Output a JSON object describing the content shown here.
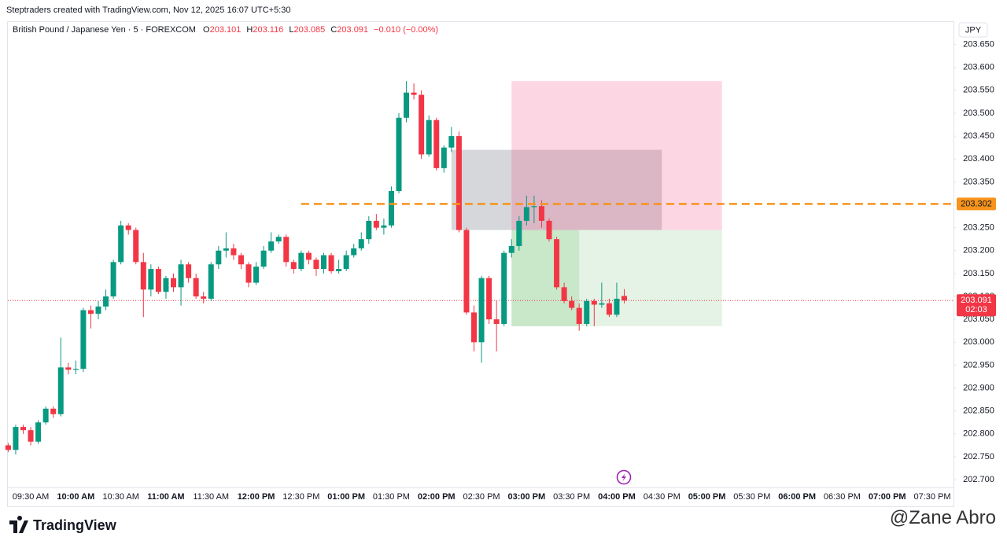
{
  "chart_data": {
    "type": "candlestick",
    "credit": "Steptraders created with TradingView.com, Nov 12, 2025 16:07 UTC+5:30",
    "symbol": "British Pound / Japanese Yen · 5 · FOREXCOM",
    "legend_labels": [
      "O",
      "H",
      "L",
      "C"
    ],
    "change": "−0.010 (−0.00%)",
    "currency": "JPY",
    "countdown": "02:03",
    "brand": "TradingView",
    "watermark": "@Zane Abro",
    "up_color": "#089981",
    "down_color": "#f23645",
    "x": [
      "09:15 AM",
      "09:20 AM",
      "09:25 AM",
      "09:30 AM",
      "09:35 AM",
      "09:40 AM",
      "09:45 AM",
      "09:50 AM",
      "09:55 AM",
      "10:00 AM",
      "10:05 AM",
      "10:10 AM",
      "10:15 AM",
      "10:20 AM",
      "10:25 AM",
      "10:30 AM",
      "10:35 AM",
      "10:40 AM",
      "10:45 AM",
      "10:50 AM",
      "10:55 AM",
      "11:00 AM",
      "11:05 AM",
      "11:10 AM",
      "11:15 AM",
      "11:20 AM",
      "11:25 AM",
      "11:30 AM",
      "11:35 AM",
      "11:40 AM",
      "11:45 AM",
      "11:50 AM",
      "11:55 AM",
      "12:00 PM",
      "12:05 PM",
      "12:10 PM",
      "12:15 PM",
      "12:20 PM",
      "12:25 PM",
      "12:30 PM",
      "12:35 PM",
      "12:40 PM",
      "12:45 PM",
      "12:50 PM",
      "12:55 PM",
      "01:00 PM",
      "01:05 PM",
      "01:10 PM",
      "01:15 PM",
      "01:20 PM",
      "01:25 PM",
      "01:30 PM",
      "01:35 PM",
      "01:40 PM",
      "01:45 PM",
      "01:50 PM",
      "01:55 PM",
      "02:00 PM",
      "02:05 PM",
      "02:10 PM",
      "02:15 PM",
      "02:20 PM",
      "02:25 PM",
      "02:30 PM",
      "02:35 PM",
      "02:40 PM",
      "02:45 PM",
      "02:50 PM",
      "02:55 PM",
      "03:00 PM",
      "03:05 PM",
      "03:10 PM",
      "03:15 PM",
      "03:20 PM",
      "03:25 PM",
      "03:30 PM",
      "03:35 PM",
      "03:40 PM",
      "03:45 PM",
      "03:50 PM",
      "03:55 PM",
      "04:00 PM",
      "04:05 PM"
    ],
    "open": [
      202.775,
      202.765,
      202.815,
      202.808,
      202.783,
      202.825,
      202.855,
      202.843,
      202.945,
      202.94,
      202.942,
      203.07,
      203.062,
      203.078,
      203.1,
      203.175,
      203.255,
      203.245,
      203.175,
      203.115,
      203.16,
      203.11,
      203.14,
      203.12,
      203.17,
      203.14,
      203.1,
      203.095,
      203.17,
      203.2,
      203.205,
      203.19,
      203.17,
      203.13,
      203.165,
      203.2,
      203.22,
      203.23,
      203.175,
      203.16,
      203.195,
      203.18,
      203.16,
      203.19,
      203.155,
      203.16,
      203.19,
      203.205,
      203.225,
      203.265,
      203.25,
      203.255,
      203.33,
      203.49,
      203.545,
      203.54,
      203.41,
      203.485,
      203.38,
      203.425,
      203.45,
      203.245,
      203.065,
      203.0,
      203.14,
      203.05,
      203.04,
      203.195,
      203.21,
      203.265,
      203.295,
      203.297,
      203.265,
      203.225,
      203.12,
      203.09,
      203.075,
      203.04,
      203.09,
      203.082,
      203.085,
      203.06,
      203.101
    ],
    "high": [
      202.78,
      202.82,
      202.82,
      202.815,
      202.83,
      202.86,
      202.86,
      203.01,
      202.955,
      202.96,
      203.075,
      203.08,
      203.09,
      203.115,
      203.18,
      203.265,
      203.26,
      203.25,
      203.195,
      203.17,
      203.165,
      203.145,
      203.15,
      203.18,
      203.175,
      203.15,
      203.11,
      203.175,
      203.21,
      203.24,
      203.215,
      203.195,
      203.175,
      203.175,
      203.21,
      203.24,
      203.235,
      203.235,
      203.18,
      203.2,
      203.2,
      203.185,
      203.195,
      203.195,
      203.18,
      203.2,
      203.215,
      203.24,
      203.275,
      203.28,
      203.27,
      203.34,
      203.5,
      203.57,
      203.565,
      203.55,
      203.495,
      203.49,
      203.43,
      203.47,
      203.46,
      203.25,
      203.08,
      203.145,
      203.145,
      203.09,
      203.2,
      203.225,
      203.275,
      203.32,
      203.32,
      203.31,
      203.27,
      203.23,
      203.13,
      203.1,
      203.085,
      203.095,
      203.095,
      203.13,
      203.095,
      203.13,
      203.116
    ],
    "low": [
      202.76,
      202.755,
      202.8,
      202.775,
      202.778,
      202.82,
      202.835,
      202.838,
      202.93,
      202.93,
      202.935,
      203.03,
      203.05,
      203.07,
      203.095,
      203.17,
      203.235,
      203.17,
      203.055,
      203.1,
      203.105,
      203.095,
      203.11,
      203.08,
      203.13,
      203.095,
      203.085,
      203.09,
      203.16,
      203.185,
      203.18,
      203.16,
      203.12,
      203.125,
      203.16,
      203.195,
      203.215,
      203.165,
      203.15,
      203.155,
      203.17,
      203.145,
      203.15,
      203.15,
      203.15,
      203.155,
      203.185,
      203.2,
      203.215,
      203.245,
      203.235,
      203.25,
      203.325,
      203.48,
      203.53,
      203.4,
      203.405,
      203.375,
      203.37,
      203.415,
      203.24,
      203.06,
      202.98,
      202.955,
      203.04,
      202.98,
      203.035,
      203.185,
      203.2,
      203.255,
      203.26,
      203.25,
      203.22,
      203.115,
      203.085,
      203.07,
      203.025,
      203.035,
      203.035,
      203.075,
      203.055,
      203.055,
      203.085
    ],
    "close": [
      202.765,
      202.815,
      202.808,
      202.783,
      202.825,
      202.855,
      202.843,
      202.945,
      202.94,
      202.942,
      203.07,
      203.062,
      203.078,
      203.1,
      203.175,
      203.255,
      203.245,
      203.175,
      203.115,
      203.16,
      203.11,
      203.14,
      203.12,
      203.17,
      203.14,
      203.1,
      203.095,
      203.17,
      203.2,
      203.205,
      203.19,
      203.17,
      203.13,
      203.165,
      203.2,
      203.22,
      203.23,
      203.175,
      203.16,
      203.195,
      203.18,
      203.16,
      203.19,
      203.155,
      203.16,
      203.19,
      203.205,
      203.225,
      203.265,
      203.25,
      203.255,
      203.33,
      203.49,
      203.545,
      203.54,
      203.41,
      203.485,
      203.38,
      203.425,
      203.45,
      203.245,
      203.065,
      203.0,
      203.14,
      203.05,
      203.04,
      203.195,
      203.21,
      203.265,
      203.295,
      203.297,
      203.265,
      203.225,
      203.12,
      203.09,
      203.075,
      203.04,
      203.09,
      203.082,
      203.085,
      203.06,
      203.095,
      203.091
    ],
    "xticks": [
      "09:30 AM",
      "10:00 AM",
      "10:30 AM",
      "11:00 AM",
      "11:30 AM",
      "12:00 PM",
      "12:30 PM",
      "01:00 PM",
      "01:30 PM",
      "02:00 PM",
      "02:30 PM",
      "03:00 PM",
      "03:30 PM",
      "04:00 PM",
      "04:30 PM",
      "05:00 PM",
      "05:30 PM",
      "06:00 PM",
      "06:30 PM",
      "07:00 PM",
      "07:30 PM"
    ],
    "ylim": [
      202.683,
      203.699
    ],
    "yticks": [
      {
        "value": 202.7,
        "label": "202.700"
      },
      {
        "value": 202.75,
        "label": "202.750"
      },
      {
        "value": 202.8,
        "label": "202.800"
      },
      {
        "value": 202.85,
        "label": "202.850"
      },
      {
        "value": 202.9,
        "label": "202.900"
      },
      {
        "value": 202.95,
        "label": "202.950"
      },
      {
        "value": 203.0,
        "label": "203.000"
      },
      {
        "value": 203.05,
        "label": "203.050"
      },
      {
        "value": 203.1,
        "label": "203.100"
      },
      {
        "value": 203.15,
        "label": "203.150"
      },
      {
        "value": 203.2,
        "label": "203.200"
      },
      {
        "value": 203.25,
        "label": "203.250"
      },
      {
        "value": 203.3,
        "label": "203.300"
      },
      {
        "value": 203.35,
        "label": "203.350"
      },
      {
        "value": 203.4,
        "label": "203.400"
      },
      {
        "value": 203.45,
        "label": "203.450"
      },
      {
        "value": 203.5,
        "label": "203.500"
      },
      {
        "value": 203.55,
        "label": "203.550"
      },
      {
        "value": 203.6,
        "label": "203.600"
      },
      {
        "value": 203.65,
        "label": "203.650"
      }
    ],
    "levels": [
      {
        "value": 203.302,
        "color": "#f7931a",
        "start": "12:30 PM"
      }
    ],
    "drawings": [
      {
        "top": 203.42,
        "bottom": 203.245,
        "start": "02:10 PM",
        "end": "04:30 PM",
        "color": "rgba(120,123,134,0.3)"
      },
      {
        "top": 203.57,
        "bottom": 203.245,
        "start": "02:50 PM",
        "end": "05:10 PM",
        "color": "rgba(242,54,117,0.2)"
      },
      {
        "top": 203.245,
        "bottom": 203.035,
        "start": "02:50 PM",
        "end": "05:10 PM",
        "color": "rgba(76,175,80,0.15)"
      },
      {
        "top": 203.245,
        "bottom": 203.035,
        "start": "02:50 PM",
        "end": "03:35 PM",
        "color": "rgba(76,175,80,0.18)"
      }
    ],
    "grid": false
  }
}
